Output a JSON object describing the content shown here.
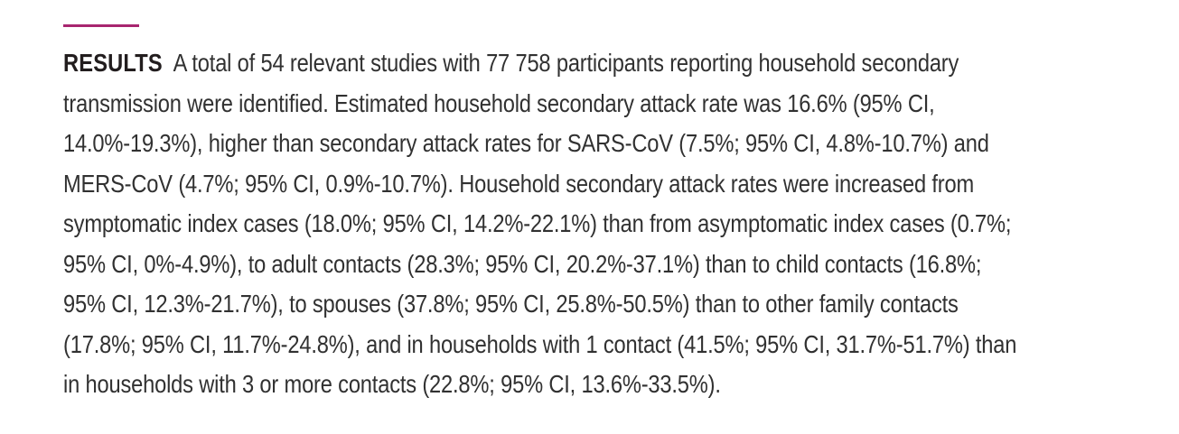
{
  "colors": {
    "background": "#ffffff",
    "accent_rule": "#A8256F",
    "body_text": "#313131",
    "heading_text": "#221d1e"
  },
  "abstract": {
    "section_label": "RESULTS",
    "lines": [
      "A total of 54 relevant studies with 77 758 participants reporting household secondary",
      "transmission were identified. Estimated household secondary attack rate was 16.6% (95% CI,",
      "14.0%-19.3%), higher than secondary attack rates for SARS-CoV (7.5%; 95% CI, 4.8%-10.7%) and",
      "MERS-CoV (4.7%; 95% CI, 0.9%-10.7%). Household secondary attack rates were increased from",
      "symptomatic index cases (18.0%; 95% CI, 14.2%-22.1%) than from asymptomatic index cases (0.7%;",
      "95% CI, 0%-4.9%), to adult contacts (28.3%; 95% CI, 20.2%-37.1%) than to child contacts (16.8%;",
      "95% CI, 12.3%-21.7%), to spouses (37.8%; 95% CI, 25.8%-50.5%) than to other family contacts",
      "(17.8%; 95% CI, 11.7%-24.8%), and in households with 1 contact (41.5%; 95% CI, 31.7%-51.7%) than",
      "in households with 3 or more contacts (22.8%; 95% CI, 13.6%-33.5%)."
    ]
  }
}
